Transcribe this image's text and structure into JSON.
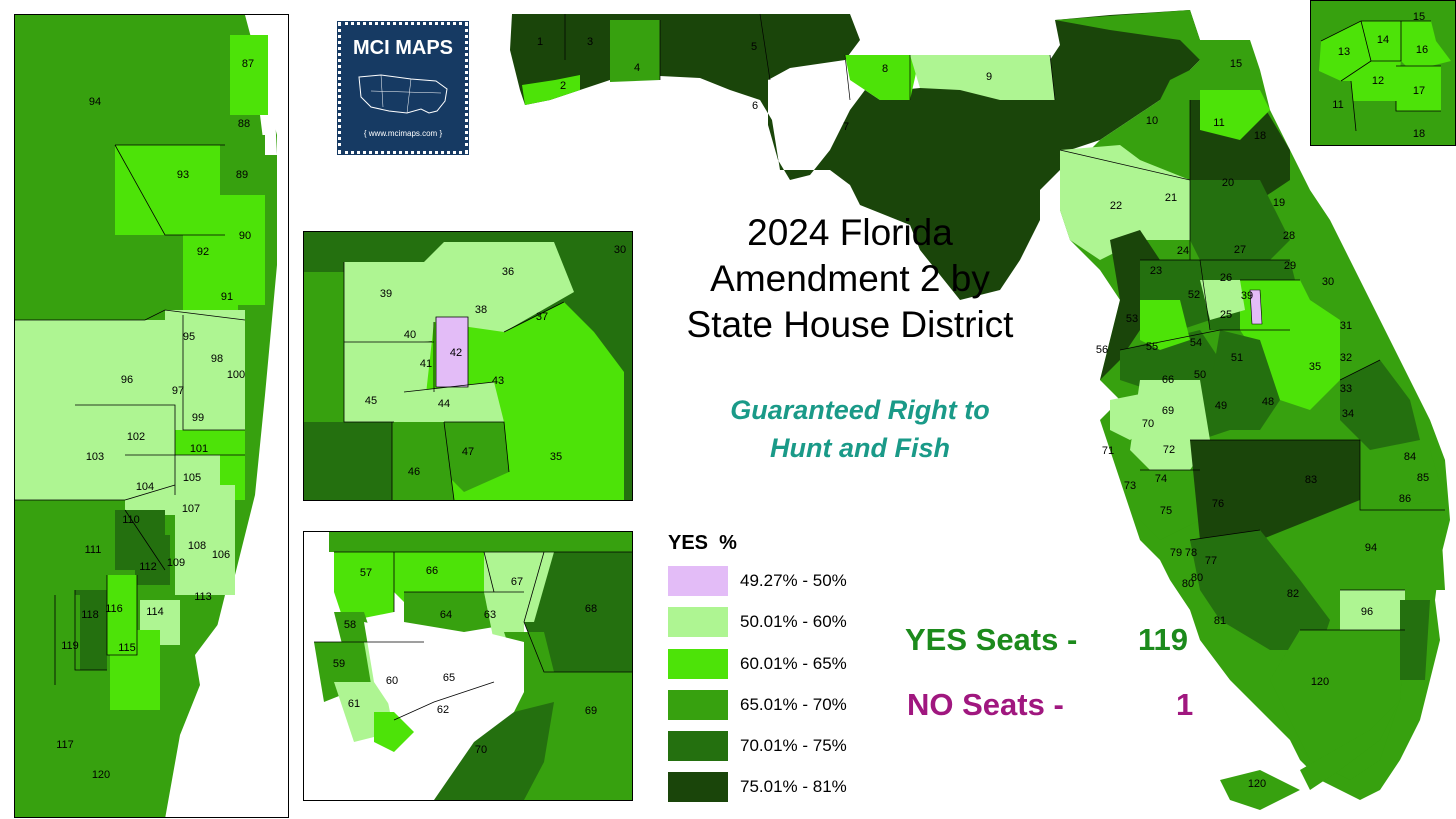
{
  "title_lines": [
    "2024 Florida",
    "Amendment 2 by",
    "State House District"
  ],
  "subtitle_lines": [
    "Guaranteed Right to",
    "Hunt and Fish"
  ],
  "logo": {
    "title": "MCI MAPS",
    "url": "{ www.mcimaps.com }"
  },
  "legend": {
    "title": "YES  %",
    "items": [
      {
        "label": "49.27% - 50%",
        "color": "#e3bcf7"
      },
      {
        "label": "50.01% - 60%",
        "color": "#aef592"
      },
      {
        "label": "60.01% - 65%",
        "color": "#4de308"
      },
      {
        "label": "65.01% - 70%",
        "color": "#37a10f"
      },
      {
        "label": "70.01% - 75%",
        "color": "#24700f"
      },
      {
        "label": "75.01% - 81%",
        "color": "#1a450a"
      }
    ]
  },
  "seats": {
    "yes_label": "YES Seats -",
    "yes_value": "119",
    "yes_color": "#1c8a1c",
    "no_label": "NO Seats -",
    "no_value": "1",
    "no_color": "#a0177f"
  },
  "southeast_inset_labels": [
    "87",
    "88",
    "93",
    "89",
    "90",
    "92",
    "91",
    "94",
    "95",
    "96",
    "97",
    "98",
    "100",
    "99",
    "101",
    "102",
    "103",
    "105",
    "104",
    "107",
    "110",
    "111",
    "109",
    "108",
    "106",
    "112",
    "113",
    "114",
    "116",
    "118",
    "119",
    "115",
    "117",
    "120"
  ],
  "orlando_inset_labels": [
    "30",
    "36",
    "39",
    "38",
    "37",
    "40",
    "42",
    "41",
    "43",
    "45",
    "44",
    "46",
    "47",
    "35"
  ],
  "tampa_inset_labels": [
    "57",
    "66",
    "67",
    "68",
    "58",
    "64",
    "63",
    "59",
    "65",
    "60",
    "61",
    "62",
    "69",
    "70"
  ],
  "jacksonville_inset_labels": [
    "15",
    "14",
    "13",
    "16",
    "12",
    "17",
    "11",
    "18"
  ],
  "main_map_labels": [
    "1",
    "3",
    "5",
    "2",
    "4",
    "8",
    "9",
    "6",
    "7",
    "10",
    "15",
    "11",
    "18",
    "20",
    "19",
    "22",
    "21",
    "28",
    "24",
    "27",
    "29",
    "23",
    "26",
    "52",
    "30",
    "53",
    "39",
    "25",
    "31",
    "56",
    "55",
    "54",
    "51",
    "32",
    "35",
    "66",
    "50",
    "49",
    "48",
    "33",
    "69",
    "34",
    "70",
    "72",
    "71",
    "74",
    "73",
    "84",
    "83",
    "76",
    "85",
    "86",
    "75",
    "94",
    "79",
    "78",
    "77",
    "80",
    "82",
    "81",
    "96",
    "120"
  ],
  "no_district": "42"
}
